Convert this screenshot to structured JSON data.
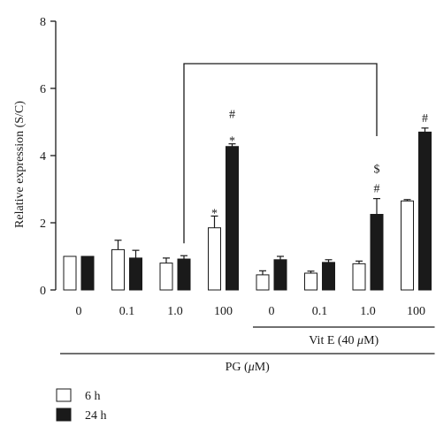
{
  "chart_data": {
    "type": "bar",
    "ylabel": "Relative expression (S/C)",
    "ylim": [
      0,
      8
    ],
    "yticks": [
      "0",
      "2",
      "4",
      "6",
      "8"
    ],
    "categories": [
      "0",
      "0.1",
      "1.0",
      "100",
      "0",
      "0.1",
      "1.0",
      "100"
    ],
    "series": [
      {
        "name": "6 h",
        "values": [
          1.0,
          1.2,
          0.8,
          1.85,
          0.45,
          0.5,
          0.78,
          2.65
        ],
        "errors": [
          0.0,
          0.28,
          0.15,
          0.35,
          0.12,
          0.06,
          0.08,
          0.04
        ],
        "color": "#ffffff"
      },
      {
        "name": "24 h",
        "values": [
          1.0,
          0.95,
          0.92,
          4.27,
          0.9,
          0.82,
          2.25,
          4.7
        ],
        "errors": [
          0.0,
          0.23,
          0.1,
          0.08,
          0.1,
          0.08,
          0.47,
          0.12
        ],
        "color": "#1a1a1a"
      }
    ],
    "annotations": [
      {
        "category_index": 3,
        "series": "6 h",
        "symbols": [
          "*"
        ]
      },
      {
        "category_index": 3,
        "series": "24 h",
        "symbols": [
          "*",
          "#"
        ]
      },
      {
        "category_index": 6,
        "series": "24 h",
        "symbols": [
          "#",
          "$"
        ]
      },
      {
        "category_index": 7,
        "series": "24 h",
        "symbols": [
          "#"
        ]
      }
    ],
    "comparison_bracket": {
      "from_category": 2,
      "to_category": 6
    },
    "group_labels": [
      {
        "text_prefix": "Vit E (40 ",
        "unit_symbol": "μ",
        "unit_suffix": "M)",
        "categories": [
          4,
          7
        ]
      },
      {
        "text_prefix": "PG (",
        "unit_symbol": "μ",
        "unit_suffix": "M)",
        "categories": [
          0,
          7
        ]
      }
    ],
    "legend": {
      "position": "bottom-left",
      "entries": [
        "6 h",
        "24 h"
      ]
    }
  }
}
